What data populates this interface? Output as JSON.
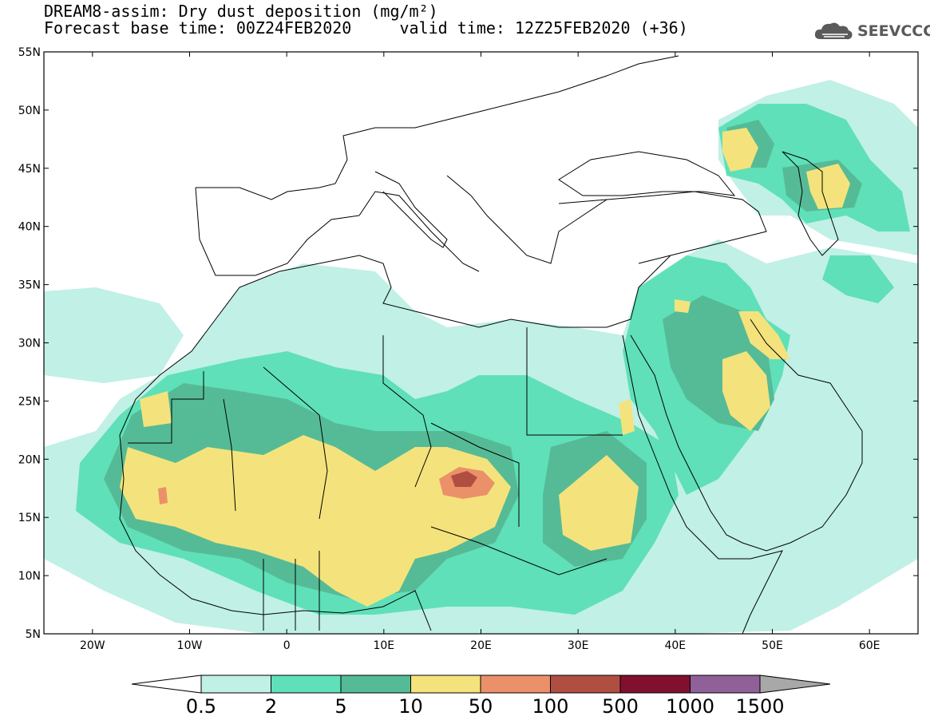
{
  "title": {
    "line1": "DREAM8-assim: Dry dust deposition (mg/m²)",
    "line2": "Forecast base time: 00Z24FEB2020     valid time: 12Z25FEB2020 (+36)"
  },
  "logo": {
    "text": "SEEVCCC",
    "icon": "cloud-icon"
  },
  "map": {
    "lat_labels": [
      "55N",
      "50N",
      "45N",
      "40N",
      "35N",
      "30N",
      "25N",
      "20N",
      "15N",
      "10N",
      "5N"
    ],
    "lon_labels": [
      "20W",
      "10W",
      "0",
      "10E",
      "20E",
      "30E",
      "40E",
      "50E",
      "60E"
    ],
    "extent": {
      "lon_min": -25,
      "lon_max": 65,
      "lat_min": 5,
      "lat_max": 55
    }
  },
  "legend": {
    "levels": [
      "0.5",
      "2",
      "5",
      "10",
      "50",
      "100",
      "500",
      "1000",
      "1500"
    ],
    "colors": [
      "#ffffff",
      "#c0f0e6",
      "#5fe0b8",
      "#55bb96",
      "#f4e37c",
      "#eb9169",
      "#b04e42",
      "#80102e",
      "#906098",
      "#a8a8a8"
    ]
  }
}
